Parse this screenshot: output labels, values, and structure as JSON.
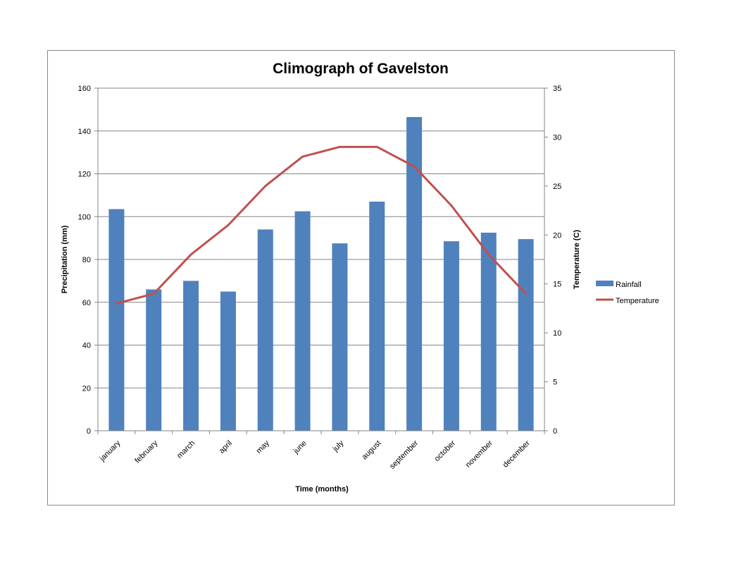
{
  "chart_data": {
    "type": "bar",
    "title": "Climograph of Gavelston",
    "xlabel": "Time (months)",
    "ylabel": "Precipitation (mm)",
    "y2label": "Temperature (C)",
    "categories": [
      "january",
      "february",
      "march",
      "april",
      "may",
      "june",
      "july",
      "august",
      "september",
      "october",
      "november",
      "december"
    ],
    "ylim": [
      0,
      160
    ],
    "y2lim": [
      0,
      35
    ],
    "yticks": [
      "0",
      "20",
      "40",
      "60",
      "80",
      "100",
      "120",
      "140",
      "160"
    ],
    "y2ticks": [
      "0",
      "5",
      "10",
      "15",
      "20",
      "25",
      "30",
      "35"
    ],
    "grid": true,
    "legend_position": "right",
    "series": [
      {
        "name": "Rainfall",
        "type": "bar",
        "axis": "left",
        "color": "#4f81bd",
        "values": [
          103.5,
          66,
          70,
          65,
          94,
          102.5,
          87.5,
          107,
          146.5,
          88.5,
          92.5,
          89.5
        ]
      },
      {
        "name": "Temperature",
        "type": "line",
        "axis": "right",
        "color": "#c0504d",
        "values": [
          13,
          14,
          18,
          21,
          25,
          28,
          29,
          29,
          27,
          23,
          18,
          14
        ]
      }
    ]
  }
}
